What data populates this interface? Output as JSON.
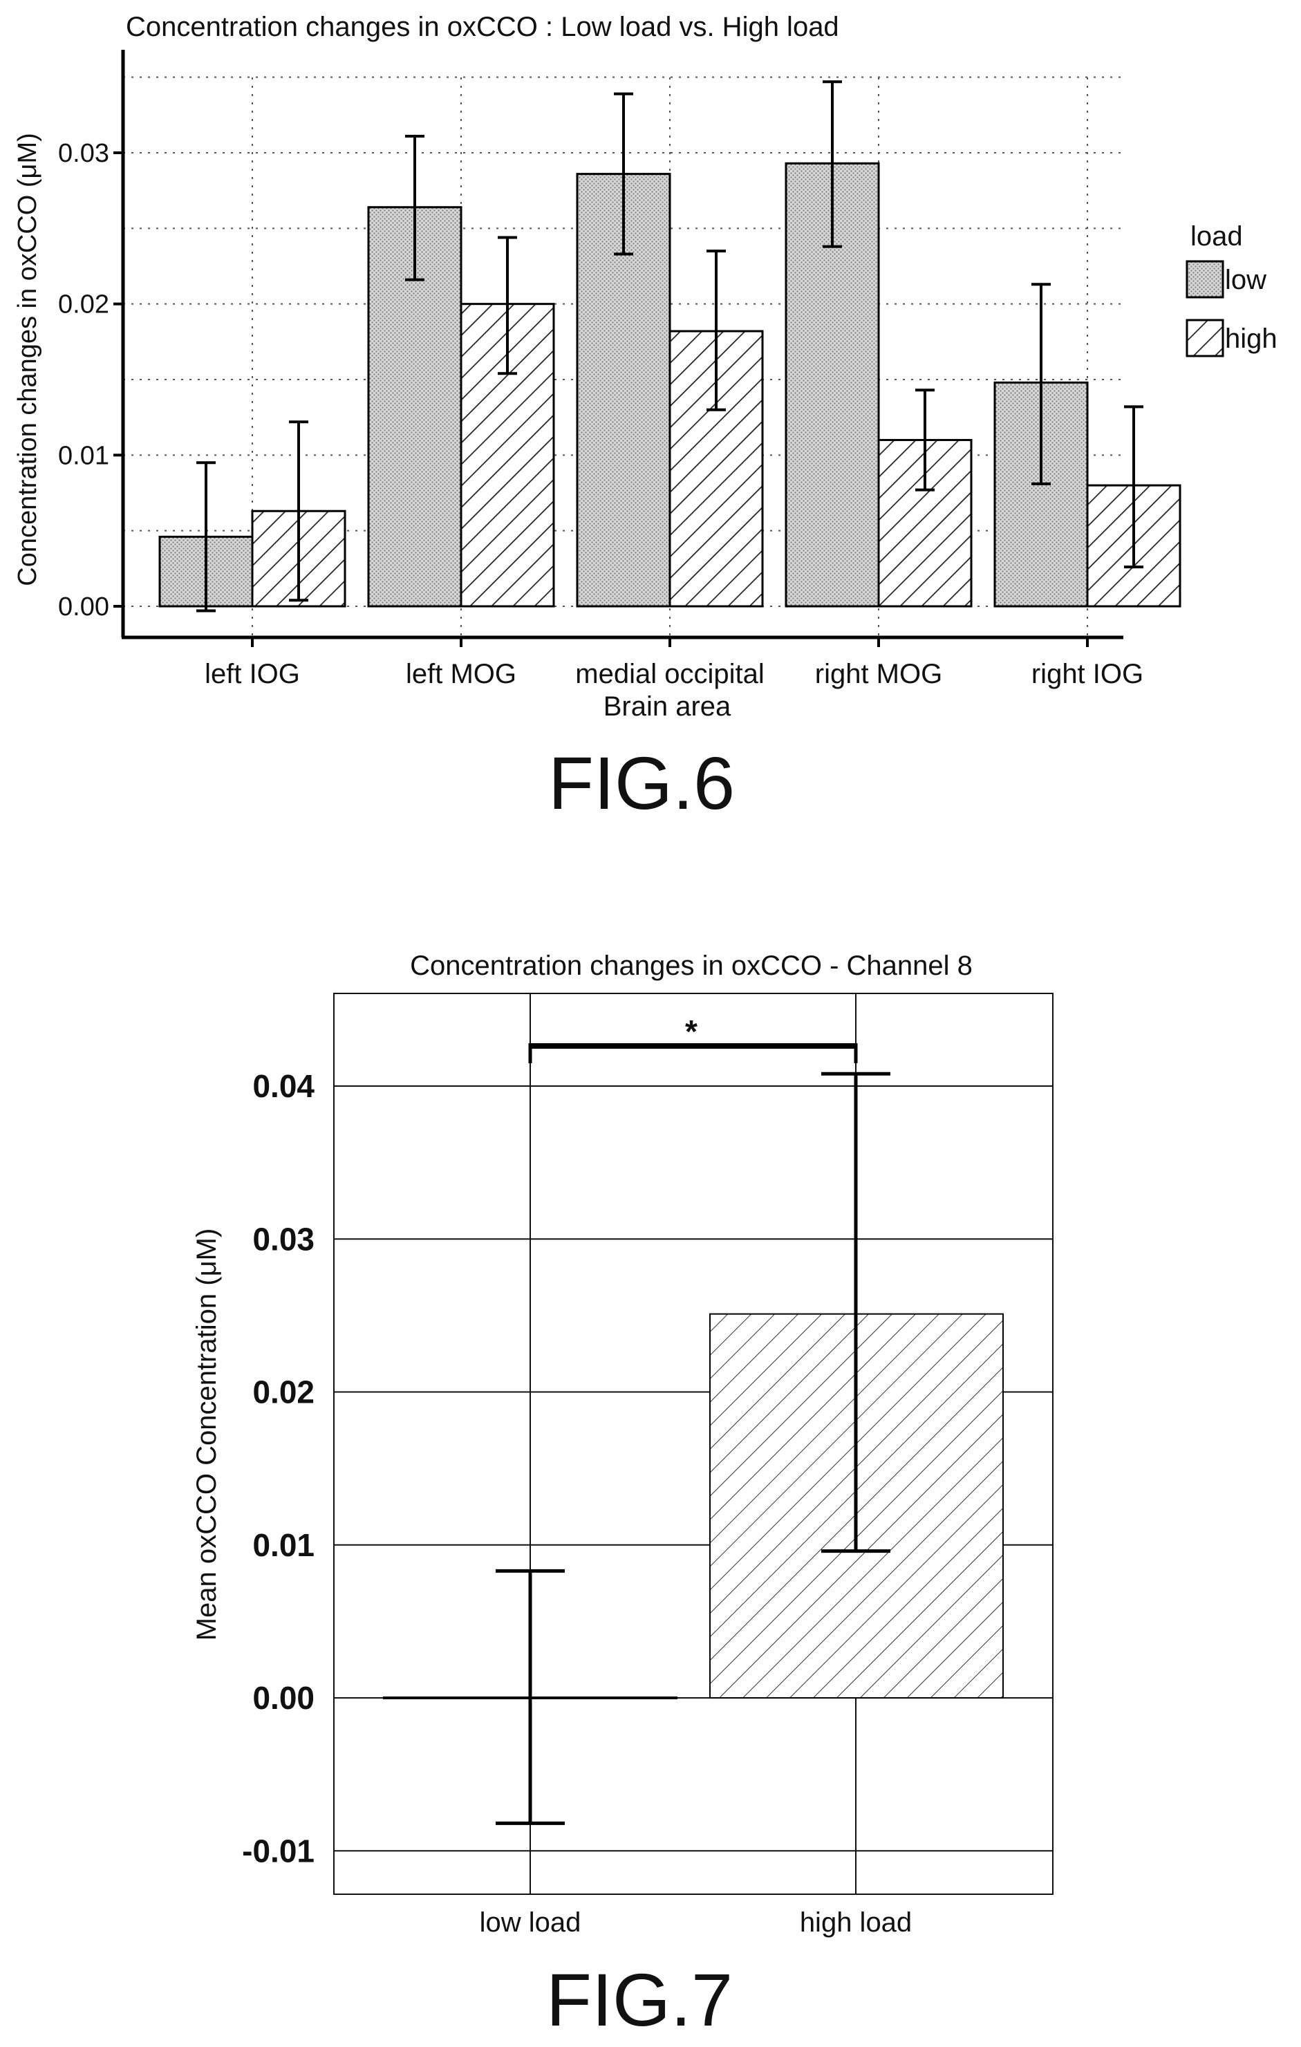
{
  "figures": [
    {
      "caption": "FIG.6"
    },
    {
      "caption": "FIG.7"
    }
  ],
  "chart_data": [
    {
      "type": "bar",
      "title": "Concentration changes in oxCCO : Low load vs. High load",
      "xlabel": "Brain area",
      "ylabel": "Concentration changes in oxCCO (μM)",
      "categories": [
        "left IOG",
        "left MOG",
        "medial occipital",
        "right MOG",
        "right IOG"
      ],
      "ylim": [
        0,
        0.036
      ],
      "yticks": [
        "0.00",
        "0.01",
        "0.02",
        "0.03"
      ],
      "grid": true,
      "legend": {
        "title": "load",
        "position": "right"
      },
      "series": [
        {
          "name": "low",
          "pattern": "dotted",
          "values": [
            0.0046,
            0.0264,
            0.0286,
            0.0293,
            0.0148
          ],
          "error_low": [
            -0.0003,
            0.0216,
            0.0233,
            0.0238,
            0.0081
          ],
          "error_high": [
            0.0095,
            0.0311,
            0.0339,
            0.0347,
            0.0213
          ]
        },
        {
          "name": "high",
          "pattern": "hatched",
          "values": [
            0.0063,
            0.02,
            0.0182,
            0.011,
            0.008
          ],
          "error_low": [
            0.0004,
            0.0154,
            0.013,
            0.0077,
            0.0026
          ],
          "error_high": [
            0.0122,
            0.0244,
            0.0235,
            0.0143,
            0.0132
          ]
        }
      ]
    },
    {
      "type": "bar",
      "title": "Concentration changes in oxCCO - Channel 8",
      "xlabel": "",
      "ylabel": "Mean oxCCO Concentration (μM)",
      "categories": [
        "low load",
        "high load"
      ],
      "ylim": [
        -0.0125,
        0.0455
      ],
      "yticks": [
        "-0.01",
        "0.00",
        "0.01",
        "0.02",
        "0.03",
        "0.04"
      ],
      "grid": true,
      "values": [
        0.0,
        0.0251
      ],
      "error_low": [
        -0.0082,
        0.0096
      ],
      "error_high": [
        0.0083,
        0.0408
      ],
      "significance": {
        "between": [
          "low load",
          "high load"
        ],
        "label": "*"
      }
    }
  ]
}
